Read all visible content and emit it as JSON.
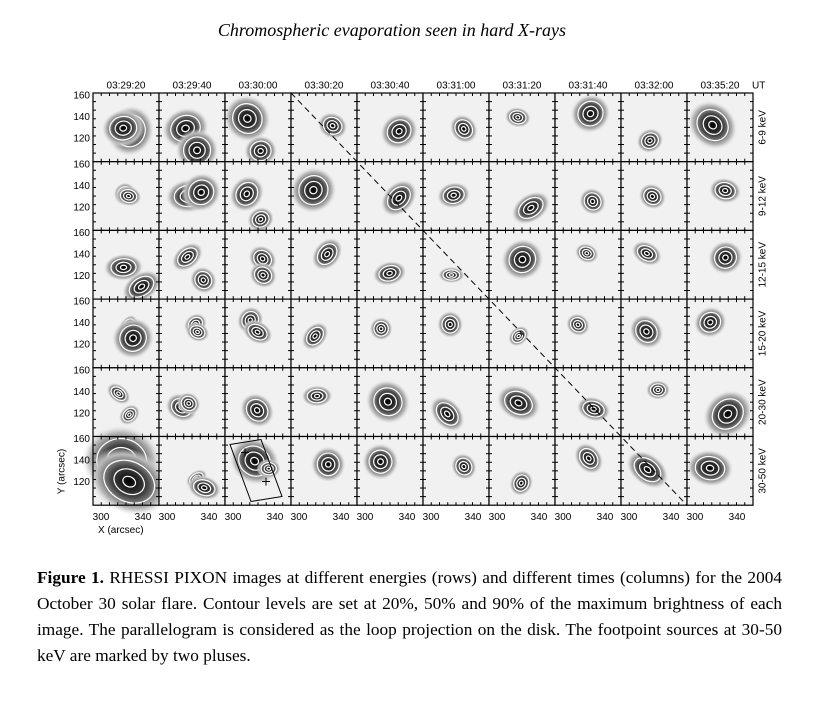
{
  "figure": {
    "title": "Chromospheric evaporation seen in hard X-rays",
    "columns": [
      "03:29:20",
      "03:29:40",
      "03:30:00",
      "03:30:20",
      "03:30:40",
      "03:31:00",
      "03:31:20",
      "03:31:40",
      "03:32:00",
      "03:35:20"
    ],
    "time_unit": "UT",
    "rows": [
      "6-9 keV",
      "9-12 keV",
      "12-15 keV",
      "15-20 keV",
      "20-30 keV",
      "30-50 keV"
    ],
    "y_ticks": [
      160,
      140,
      120
    ],
    "x_ticks": [
      300,
      340
    ],
    "x_axis_label": "X (arcsec)",
    "y_axis_label": "Y (arcsec)",
    "caption": {
      "label": "Figure 1.",
      "text": "RHESSI PIXON images at different energies (rows) and different times (columns) for the 2004 October 30 solar flare. Contour levels are set at 20%, 50% and 90% of the maximum brightness of each image. The parallelogram is considered as the loop projection on the disk. The footpoint sources at 30-50 keV are marked by two pluses."
    }
  }
}
